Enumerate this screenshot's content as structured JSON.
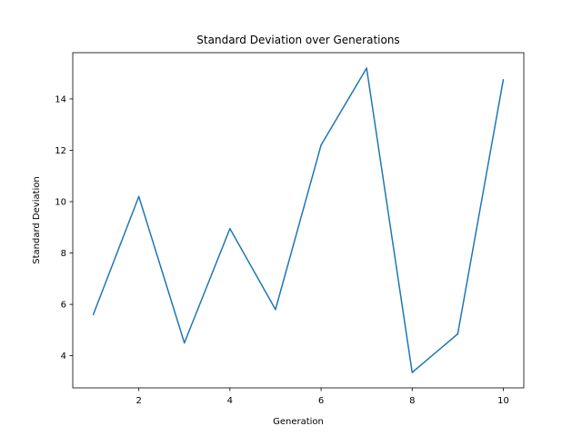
{
  "chart_data": {
    "type": "line",
    "title": "Standard Deviation over Generations",
    "xlabel": "Generation",
    "ylabel": "Standard Deviation",
    "x": [
      1,
      2,
      3,
      4,
      5,
      6,
      7,
      8,
      9,
      10
    ],
    "series": [
      {
        "values": [
          5.6,
          10.2,
          4.5,
          8.95,
          5.8,
          12.2,
          15.2,
          3.35,
          4.85,
          14.75
        ],
        "color": "#1f77b4"
      }
    ],
    "xlim": [
      0.55,
      10.45
    ],
    "ylim": [
      2.75,
      15.8
    ],
    "xticks": [
      2,
      4,
      6,
      8,
      10
    ],
    "yticks": [
      4,
      6,
      8,
      10,
      12,
      14
    ],
    "grid": false,
    "legend": "none"
  }
}
